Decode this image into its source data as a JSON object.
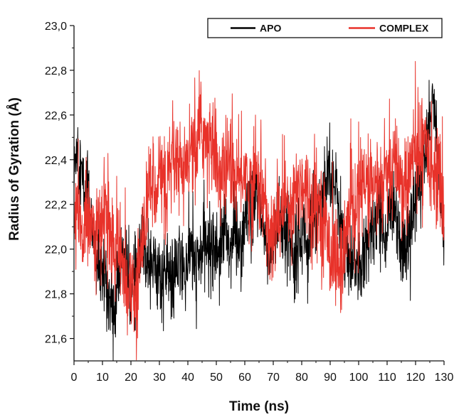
{
  "chart_data": {
    "type": "line",
    "title": "",
    "xlabel": "Time (ns)",
    "ylabel": "Radius of Gyration (Å)",
    "xlim": [
      0,
      130
    ],
    "ylim": [
      21.5,
      23.0
    ],
    "x_ticks": [
      0,
      10,
      20,
      30,
      40,
      50,
      60,
      70,
      80,
      90,
      100,
      110,
      120,
      130
    ],
    "x_tick_labels": [
      "0",
      "10",
      "20",
      "30",
      "40",
      "50",
      "60",
      "70",
      "80",
      "90",
      "100",
      "110",
      "120",
      "130"
    ],
    "y_ticks": [
      21.6,
      21.8,
      22.0,
      22.2,
      22.4,
      22.6,
      22.8,
      23.0
    ],
    "y_tick_labels": [
      "21,6",
      "21,8",
      "22,0",
      "22,2",
      "22,4",
      "22,6",
      "22,8",
      "23,0"
    ],
    "grid": false,
    "legend_position": "top-right",
    "series": [
      {
        "name": "APO",
        "color": "#000000",
        "x": [
          0,
          1,
          2,
          3,
          4,
          5,
          6,
          7,
          8,
          9,
          10,
          11,
          12,
          13,
          14,
          15,
          16,
          17,
          18,
          19,
          20,
          21,
          22,
          23,
          24,
          25,
          26,
          27,
          28,
          29,
          30,
          31,
          32,
          33,
          34,
          35,
          36,
          37,
          38,
          39,
          40,
          41,
          42,
          43,
          44,
          45,
          46,
          47,
          48,
          49,
          50,
          51,
          52,
          53,
          54,
          55,
          56,
          57,
          58,
          59,
          60,
          61,
          62,
          63,
          64,
          65,
          66,
          67,
          68,
          69,
          70,
          71,
          72,
          73,
          74,
          75,
          76,
          77,
          78,
          79,
          80,
          81,
          82,
          83,
          84,
          85,
          86,
          87,
          88,
          89,
          90,
          91,
          92,
          93,
          94,
          95,
          96,
          97,
          98,
          99,
          100,
          101,
          102,
          103,
          104,
          105,
          106,
          107,
          108,
          109,
          110,
          111,
          112,
          113,
          114,
          115,
          116,
          117,
          118,
          119,
          120,
          121,
          122,
          123,
          124,
          125,
          126,
          127,
          128,
          129,
          130
        ],
        "y": [
          22.3,
          22.5,
          22.4,
          22.3,
          22.2,
          22.35,
          22.1,
          22.0,
          21.95,
          21.9,
          21.85,
          21.9,
          21.8,
          21.75,
          21.7,
          21.8,
          21.9,
          22.0,
          21.95,
          21.85,
          21.8,
          21.85,
          21.9,
          21.95,
          22.0,
          22.0,
          21.95,
          22.0,
          21.9,
          21.95,
          21.9,
          21.85,
          21.9,
          21.9,
          21.85,
          21.85,
          21.9,
          21.95,
          21.9,
          21.9,
          21.95,
          22.0,
          21.95,
          21.9,
          21.95,
          22.0,
          22.05,
          22.0,
          22.0,
          22.05,
          22.0,
          22.0,
          22.05,
          22.1,
          22.05,
          22.0,
          22.05,
          22.1,
          22.0,
          22.05,
          22.1,
          22.15,
          22.1,
          22.2,
          22.25,
          22.2,
          22.1,
          22.05,
          22.0,
          22.0,
          22.05,
          22.1,
          22.15,
          22.1,
          22.05,
          22.1,
          22.05,
          22.0,
          22.0,
          22.05,
          22.05,
          22.1,
          22.0,
          22.05,
          22.1,
          22.15,
          22.2,
          22.25,
          22.3,
          22.35,
          22.4,
          22.3,
          22.25,
          22.2,
          22.1,
          22.0,
          21.95,
          21.9,
          21.9,
          21.95,
          21.95,
          21.9,
          21.95,
          22.0,
          22.05,
          22.1,
          22.15,
          22.2,
          22.15,
          22.1,
          22.1,
          22.15,
          22.2,
          22.2,
          22.1,
          22.0,
          22.0,
          22.05,
          22.1,
          22.15,
          22.2,
          22.3,
          22.35,
          22.4,
          22.5,
          22.6,
          22.65,
          22.55,
          22.4,
          22.2,
          22.1
        ]
      },
      {
        "name": "COMPLEX",
        "color": "#e8322a",
        "x": [
          0,
          1,
          2,
          3,
          4,
          5,
          6,
          7,
          8,
          9,
          10,
          11,
          12,
          13,
          14,
          15,
          16,
          17,
          18,
          19,
          20,
          21,
          22,
          23,
          24,
          25,
          26,
          27,
          28,
          29,
          30,
          31,
          32,
          33,
          34,
          35,
          36,
          37,
          38,
          39,
          40,
          41,
          42,
          43,
          44,
          45,
          46,
          47,
          48,
          49,
          50,
          51,
          52,
          53,
          54,
          55,
          56,
          57,
          58,
          59,
          60,
          61,
          62,
          63,
          64,
          65,
          66,
          67,
          68,
          69,
          70,
          71,
          72,
          73,
          74,
          75,
          76,
          77,
          78,
          79,
          80,
          81,
          82,
          83,
          84,
          85,
          86,
          87,
          88,
          89,
          90,
          91,
          92,
          93,
          94,
          95,
          96,
          97,
          98,
          99,
          100,
          101,
          102,
          103,
          104,
          105,
          106,
          107,
          108,
          109,
          110,
          111,
          112,
          113,
          114,
          115,
          116,
          117,
          118,
          119,
          120,
          121,
          122,
          123,
          124,
          125,
          126,
          127,
          128,
          129,
          130
        ],
        "y": [
          22.1,
          22.15,
          22.1,
          22.05,
          22.1,
          22.2,
          22.15,
          22.1,
          22.05,
          22.1,
          22.1,
          22.2,
          22.1,
          22.05,
          22.0,
          22.0,
          21.95,
          21.95,
          21.9,
          21.85,
          21.8,
          21.8,
          21.75,
          21.95,
          22.05,
          22.15,
          22.25,
          22.3,
          22.3,
          22.3,
          22.35,
          22.3,
          22.3,
          22.3,
          22.35,
          22.35,
          22.4,
          22.35,
          22.3,
          22.35,
          22.4,
          22.45,
          22.4,
          22.45,
          22.5,
          22.55,
          22.5,
          22.45,
          22.45,
          22.5,
          22.4,
          22.35,
          22.3,
          22.35,
          22.4,
          22.4,
          22.35,
          22.3,
          22.3,
          22.35,
          22.35,
          22.3,
          22.25,
          22.3,
          22.35,
          22.3,
          22.25,
          22.2,
          22.1,
          22.05,
          22.05,
          22.1,
          22.15,
          22.2,
          22.25,
          22.2,
          22.25,
          22.2,
          22.25,
          22.3,
          22.3,
          22.3,
          22.25,
          22.2,
          22.2,
          22.25,
          22.2,
          22.15,
          22.1,
          22.05,
          22.0,
          22.0,
          21.95,
          21.9,
          21.95,
          22.0,
          22.1,
          22.15,
          22.2,
          22.2,
          22.25,
          22.3,
          22.25,
          22.3,
          22.3,
          22.25,
          22.3,
          22.3,
          22.25,
          22.3,
          22.35,
          22.3,
          22.35,
          22.4,
          22.35,
          22.3,
          22.25,
          22.3,
          22.35,
          22.4,
          22.45,
          22.4,
          22.45,
          22.5,
          22.45,
          22.4,
          22.4,
          22.35,
          22.3,
          22.25,
          22.2
        ]
      }
    ]
  }
}
